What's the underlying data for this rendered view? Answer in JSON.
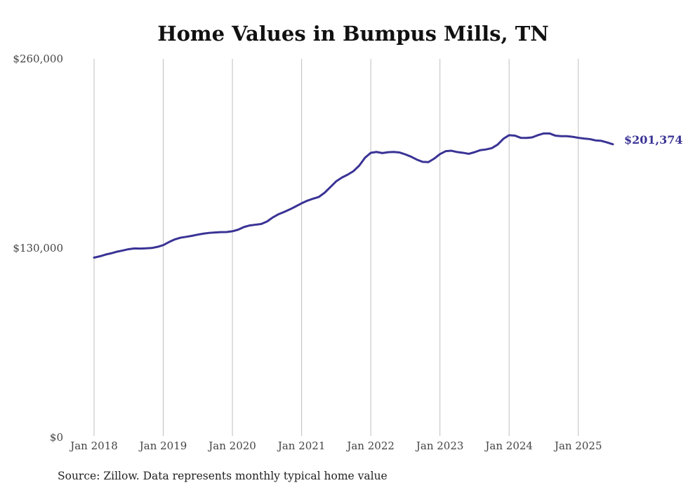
{
  "chart_data": {
    "type": "line",
    "title": "Home Values in Bumpus Mills, TN",
    "source": "Source: Zillow. Data represents monthly typical home value",
    "ylim": [
      0,
      260000
    ],
    "yticks": [
      0,
      130000,
      260000
    ],
    "ytick_labels": [
      "$0",
      "$130,000",
      "$260,000"
    ],
    "xlim": [
      "2018-01",
      "2025-07"
    ],
    "xticks": [
      "2018-01",
      "2019-01",
      "2020-01",
      "2021-01",
      "2022-01",
      "2023-01",
      "2024-01",
      "2025-01"
    ],
    "xtick_labels": [
      "Jan 2018",
      "Jan 2019",
      "Jan 2020",
      "Jan 2021",
      "Jan 2022",
      "Jan 2023",
      "Jan 2024",
      "Jan 2025"
    ],
    "grid": "vertical",
    "line_color": "#3a3395",
    "end_label": "$201,374",
    "series": [
      {
        "x": [
          "2018-01",
          "2018-02",
          "2018-03",
          "2018-04",
          "2018-05",
          "2018-06",
          "2018-07",
          "2018-08",
          "2018-09",
          "2018-10",
          "2018-11",
          "2018-12",
          "2019-01",
          "2019-02",
          "2019-03",
          "2019-04",
          "2019-05",
          "2019-06",
          "2019-07",
          "2019-08",
          "2019-09",
          "2019-10",
          "2019-11",
          "2019-12",
          "2020-01",
          "2020-02",
          "2020-03",
          "2020-04",
          "2020-05",
          "2020-06",
          "2020-07",
          "2020-08",
          "2020-09",
          "2020-10",
          "2020-11",
          "2020-12",
          "2021-01",
          "2021-02",
          "2021-03",
          "2021-04",
          "2021-05",
          "2021-06",
          "2021-07",
          "2021-08",
          "2021-09",
          "2021-10",
          "2021-11",
          "2021-12",
          "2022-01",
          "2022-02",
          "2022-03",
          "2022-04",
          "2022-05",
          "2022-06",
          "2022-07",
          "2022-08",
          "2022-09",
          "2022-10",
          "2022-11",
          "2022-12",
          "2023-01",
          "2023-02",
          "2023-03",
          "2023-04",
          "2023-05",
          "2023-06",
          "2023-07",
          "2023-08",
          "2023-09",
          "2023-10",
          "2023-11",
          "2023-12",
          "2024-01",
          "2024-02",
          "2024-03",
          "2024-04",
          "2024-05",
          "2024-06",
          "2024-07",
          "2024-08",
          "2024-09",
          "2024-10",
          "2024-11",
          "2024-12",
          "2025-01",
          "2025-02",
          "2025-03",
          "2025-04",
          "2025-05",
          "2025-06",
          "2025-07"
        ],
        "values": [
          123500,
          124400,
          125600,
          126500,
          127600,
          128400,
          129300,
          129800,
          129700,
          129900,
          130100,
          130900,
          132100,
          134200,
          136000,
          137200,
          137800,
          138500,
          139300,
          140000,
          140500,
          140800,
          141000,
          141100,
          141600,
          142700,
          144500,
          145600,
          146100,
          146600,
          148300,
          151100,
          153300,
          154900,
          156700,
          158700,
          160800,
          162600,
          164000,
          165200,
          168100,
          172000,
          175900,
          178500,
          180500,
          182900,
          186700,
          192100,
          195500,
          196100,
          195300,
          195900,
          196100,
          195700,
          194400,
          192800,
          190800,
          189300,
          189100,
          191500,
          194600,
          196600,
          196900,
          196000,
          195500,
          194800,
          195900,
          197300,
          197800,
          198700,
          201100,
          205100,
          207600,
          207300,
          205800,
          205700,
          206100,
          207600,
          208800,
          208800,
          207300,
          206900,
          206900,
          206500,
          205800,
          205300,
          204900,
          204000,
          203700,
          202600,
          201374
        ]
      }
    ]
  }
}
